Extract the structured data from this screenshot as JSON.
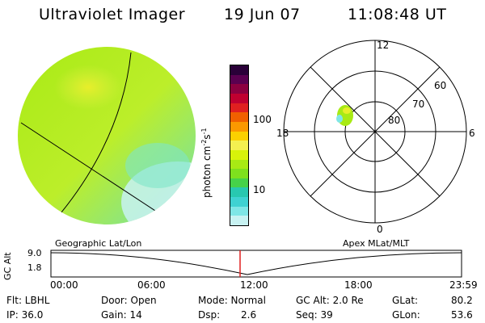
{
  "header": {
    "instrument": "Ultraviolet Imager",
    "date": "19 Jun 07",
    "time": "11:08:48 UT"
  },
  "colorbar": {
    "unit_label": "photon cm",
    "unit_exp1": "-2",
    "unit_s": "s",
    "unit_exp2": "-1",
    "tick_100": "100",
    "tick_10": "10",
    "colors": [
      "#c8f2f2",
      "#7fe6e6",
      "#3fd2d2",
      "#28c8b0",
      "#46d24a",
      "#7ee01e",
      "#a8ea14",
      "#d8f20a",
      "#f4f050",
      "#fbd000",
      "#fb9800",
      "#f06000",
      "#e02020",
      "#c00030",
      "#8c0040",
      "#5a0050",
      "#2a0038"
    ]
  },
  "polar": {
    "mlt_12": "12",
    "mlt_18": "18",
    "mlt_6": "6",
    "mlt_0": "0",
    "lat_60": "60",
    "lat_70": "70",
    "lat_80": "80"
  },
  "timeline": {
    "left_title": "Geographic Lat/Lon",
    "right_title": "Apex MLat/MLT",
    "axis_label": "GC Alt",
    "alt_max": "9.0",
    "alt_min": "1.8",
    "ticks": [
      "00:00",
      "06:00",
      "12:00",
      "18:00",
      "23:59"
    ]
  },
  "footer": {
    "flt": "Flt: LBHL",
    "ip": "IP: 36.0",
    "door": "Door: Open",
    "gain": "Gain: 14",
    "mode": "Mode: Normal",
    "dsp_label": "Dsp:",
    "dsp_value": "2.6",
    "gc_alt": "GC Alt: 2.0 Re",
    "seq": "Seq: 39",
    "glat_label": "GLat:",
    "glat_value": "80.2",
    "glon_label": "GLon:",
    "glon_value": "53.6"
  }
}
